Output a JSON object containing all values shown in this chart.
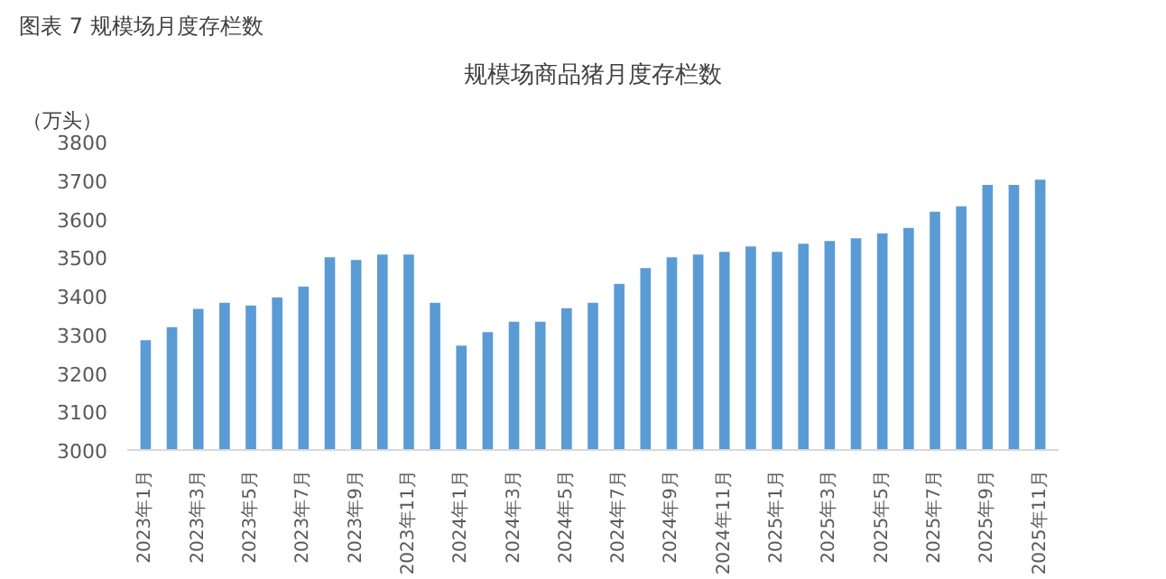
{
  "chart_data": {
    "type": "bar",
    "title": "规模场商品猪月度存栏数",
    "ylabel": "（万头）",
    "annotations": [
      "图表 7 规模场月度存栏数"
    ],
    "categories": [
      "2023年1月",
      null,
      "2023年3月",
      null,
      "2023年5月",
      null,
      "2023年7月",
      null,
      "2023年9月",
      null,
      "2023年11月",
      null,
      "2024年1月",
      null,
      "2024年3月",
      null,
      "2024年5月",
      null,
      "2024年7月",
      null,
      "2024年9月",
      null,
      "2024年11月",
      null,
      "2025年1月",
      null,
      "2025年3月",
      null,
      "2025年5月",
      null,
      "2025年7月",
      null,
      "2025年9月",
      null,
      "2025年11月"
    ],
    "values": [
      3285,
      3319,
      3366,
      3382,
      3375,
      3396,
      3424,
      3500,
      3493,
      3507,
      3507,
      3382,
      3271,
      3306,
      3333,
      3333,
      3368,
      3382,
      3431,
      3472,
      3500,
      3507,
      3514,
      3528,
      3514,
      3535,
      3542,
      3549,
      3562,
      3576,
      3618,
      3632,
      3688,
      3688,
      3701
    ],
    "color": "#5b9bd5",
    "ylim": [
      3000,
      3800
    ],
    "yticks": [
      3000,
      3100,
      3200,
      3300,
      3400,
      3500,
      3600,
      3700,
      3800
    ],
    "grid": false
  }
}
